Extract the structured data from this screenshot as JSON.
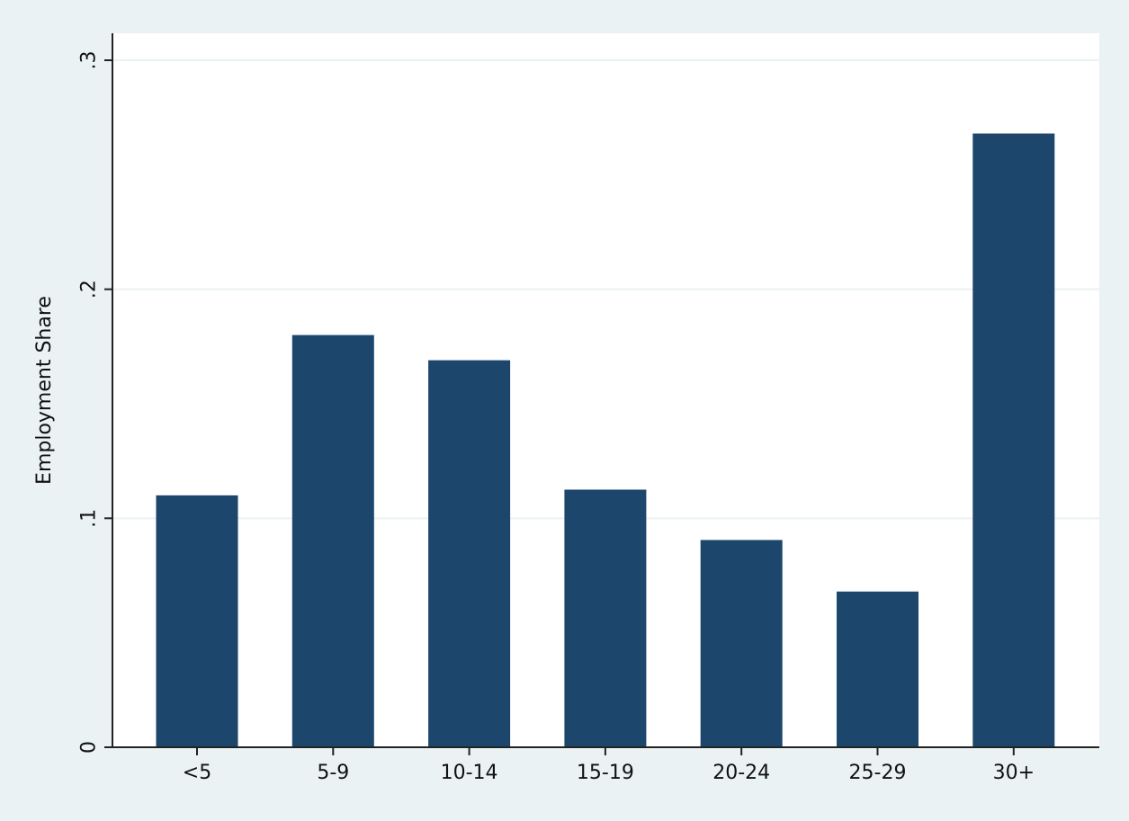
{
  "chart_data": {
    "type": "bar",
    "title": "",
    "xlabel": "",
    "ylabel": "Employment Share",
    "categories": [
      "<5",
      "5-9",
      "10-14",
      "15-19",
      "20-24",
      "25-29",
      "30+"
    ],
    "values": [
      0.11,
      0.18,
      0.169,
      0.1125,
      0.0905,
      0.068,
      0.268
    ],
    "ylim": [
      0,
      0.3
    ],
    "yticks": [
      0,
      0.1,
      0.2,
      0.3
    ],
    "ytick_labels": [
      "0",
      ".1",
      ".2",
      ".3"
    ],
    "grid": true,
    "legend": "none",
    "colors": {
      "bar": "#1c466c",
      "background": "#eaf2f3",
      "plot_area": "#ffffff",
      "gridline": "#eaf2f3",
      "axis": "#222222"
    }
  }
}
